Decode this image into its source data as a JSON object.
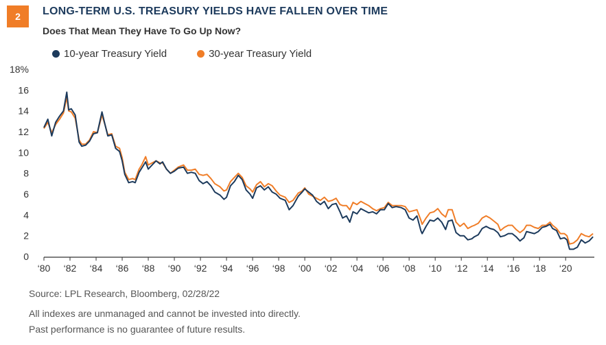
{
  "header": {
    "badge": "2",
    "title": "LONG-TERM U.S. TREASURY YIELDS HAVE FALLEN OVER TIME",
    "subtitle": "Does That Mean They Have To Go Up Now?"
  },
  "footer": {
    "source": "Source: LPL Research, Bloomberg,  02/28/22",
    "note1": "All indexes are unmanaged and cannot be invested into directly.",
    "note2": "Past performance is no guarantee of future results."
  },
  "chart_data": {
    "type": "line",
    "title": "LONG-TERM U.S. TREASURY YIELDS HAVE FALLEN OVER TIME",
    "subtitle": "Does That Mean They Have To Go Up Now?",
    "ylim": [
      0,
      18
    ],
    "xlim": [
      1980,
      2022.2
    ],
    "y_ticks": [
      0,
      2,
      4,
      6,
      8,
      10,
      12,
      14,
      16,
      18
    ],
    "y_tick_labels": [
      "0",
      "2",
      "4",
      "6",
      "8",
      "10",
      "12",
      "14",
      "16",
      "18%"
    ],
    "x_ticks": [
      1980,
      1982,
      1984,
      1986,
      1988,
      1990,
      1992,
      1994,
      1996,
      1998,
      2000,
      2002,
      2004,
      2006,
      2008,
      2010,
      2012,
      2014,
      2016,
      2018,
      2020
    ],
    "x_tick_labels": [
      "‘80",
      "‘82",
      "‘84",
      "‘86",
      "‘88",
      "‘90",
      "‘92",
      "‘94",
      "‘96",
      "‘98",
      "‘00",
      "‘02",
      "‘04",
      "‘06",
      "‘08",
      "‘10",
      "‘12",
      "‘14",
      "‘16",
      "‘18",
      "‘20"
    ],
    "legend_position": "top-left",
    "grid": false,
    "series": [
      {
        "name": "10-year Treasury Yield",
        "color": "#1c3a5c",
        "x": [
          1980.0,
          1980.3,
          1980.6,
          1980.9,
          1981.2,
          1981.5,
          1981.75,
          1981.9,
          1982.1,
          1982.4,
          1982.7,
          1982.9,
          1983.2,
          1983.5,
          1983.8,
          1984.1,
          1984.45,
          1984.7,
          1984.9,
          1985.2,
          1985.5,
          1985.8,
          1986.0,
          1986.2,
          1986.5,
          1986.8,
          1987.0,
          1987.3,
          1987.5,
          1987.8,
          1988.0,
          1988.3,
          1988.6,
          1988.9,
          1989.1,
          1989.4,
          1989.7,
          1990.0,
          1990.3,
          1990.7,
          1991.0,
          1991.3,
          1991.6,
          1991.9,
          1992.2,
          1992.5,
          1992.8,
          1993.1,
          1993.5,
          1993.8,
          1994.0,
          1994.3,
          1994.6,
          1994.9,
          1995.2,
          1995.5,
          1995.8,
          1996.0,
          1996.3,
          1996.6,
          1996.9,
          1997.2,
          1997.5,
          1997.8,
          1998.1,
          1998.5,
          1998.8,
          1999.1,
          1999.5,
          1999.8,
          2000.0,
          2000.3,
          2000.6,
          2000.9,
          2001.2,
          2001.5,
          2001.8,
          2002.1,
          2002.4,
          2002.7,
          2002.9,
          2003.2,
          2003.45,
          2003.7,
          2004.0,
          2004.3,
          2004.6,
          2004.9,
          2005.2,
          2005.5,
          2005.8,
          2006.1,
          2006.4,
          2006.7,
          2007.0,
          2007.4,
          2007.7,
          2008.0,
          2008.3,
          2008.6,
          2008.9,
          2009.0,
          2009.3,
          2009.6,
          2009.9,
          2010.2,
          2010.5,
          2010.8,
          2011.0,
          2011.3,
          2011.6,
          2011.9,
          2012.2,
          2012.5,
          2012.8,
          2013.0,
          2013.3,
          2013.6,
          2013.9,
          2014.2,
          2014.5,
          2014.8,
          2015.0,
          2015.3,
          2015.6,
          2015.9,
          2016.2,
          2016.5,
          2016.8,
          2017.0,
          2017.3,
          2017.6,
          2017.9,
          2018.2,
          2018.5,
          2018.8,
          2019.0,
          2019.3,
          2019.6,
          2019.9,
          2020.1,
          2020.3,
          2020.6,
          2020.9,
          2021.2,
          2021.5,
          2021.8,
          2022.1
        ],
        "y": [
          12.4,
          13.2,
          11.6,
          12.9,
          13.5,
          14.0,
          15.8,
          14.1,
          14.2,
          13.6,
          11.0,
          10.6,
          10.7,
          11.1,
          11.8,
          11.9,
          13.9,
          12.6,
          11.6,
          11.7,
          10.4,
          10.1,
          9.2,
          7.9,
          7.1,
          7.2,
          7.1,
          8.1,
          8.5,
          9.1,
          8.4,
          8.8,
          9.2,
          8.9,
          9.1,
          8.4,
          8.0,
          8.2,
          8.5,
          8.6,
          8.0,
          8.1,
          8.0,
          7.3,
          7.0,
          7.2,
          6.8,
          6.2,
          5.9,
          5.5,
          5.7,
          6.8,
          7.2,
          7.8,
          7.4,
          6.4,
          6.0,
          5.6,
          6.6,
          6.8,
          6.4,
          6.7,
          6.2,
          6.0,
          5.6,
          5.4,
          4.5,
          4.9,
          5.8,
          6.2,
          6.5,
          6.2,
          5.9,
          5.3,
          5.0,
          5.3,
          4.6,
          5.0,
          5.1,
          4.3,
          3.7,
          3.9,
          3.3,
          4.3,
          4.1,
          4.6,
          4.4,
          4.2,
          4.3,
          4.1,
          4.5,
          4.5,
          5.1,
          4.7,
          4.8,
          4.7,
          4.5,
          3.7,
          3.5,
          3.9,
          2.5,
          2.2,
          2.9,
          3.5,
          3.4,
          3.7,
          3.3,
          2.6,
          3.4,
          3.5,
          2.3,
          2.0,
          2.0,
          1.6,
          1.7,
          1.9,
          2.1,
          2.7,
          2.9,
          2.7,
          2.6,
          2.3,
          1.9,
          2.0,
          2.2,
          2.2,
          1.9,
          1.5,
          1.8,
          2.4,
          2.3,
          2.2,
          2.4,
          2.8,
          2.9,
          3.1,
          2.7,
          2.5,
          1.7,
          1.8,
          1.6,
          0.7,
          0.7,
          0.9,
          1.6,
          1.3,
          1.5,
          1.9
        ]
      },
      {
        "name": "30-year Treasury Yield",
        "color": "#f07d27",
        "x": [
          1980.0,
          1980.3,
          1980.6,
          1980.9,
          1981.2,
          1981.5,
          1981.75,
          1981.9,
          1982.1,
          1982.4,
          1982.7,
          1982.9,
          1983.2,
          1983.5,
          1983.8,
          1984.1,
          1984.45,
          1984.7,
          1984.9,
          1985.2,
          1985.5,
          1985.8,
          1986.0,
          1986.2,
          1986.5,
          1986.8,
          1987.0,
          1987.3,
          1987.5,
          1987.8,
          1988.0,
          1988.3,
          1988.6,
          1988.9,
          1989.1,
          1989.4,
          1989.7,
          1990.0,
          1990.3,
          1990.7,
          1991.0,
          1991.3,
          1991.6,
          1991.9,
          1992.2,
          1992.5,
          1992.8,
          1993.1,
          1993.5,
          1993.8,
          1994.0,
          1994.3,
          1994.6,
          1994.9,
          1995.2,
          1995.5,
          1995.8,
          1996.0,
          1996.3,
          1996.6,
          1996.9,
          1997.2,
          1997.5,
          1997.8,
          1998.1,
          1998.5,
          1998.8,
          1999.1,
          1999.5,
          1999.8,
          2000.0,
          2000.3,
          2000.6,
          2000.9,
          2001.2,
          2001.5,
          2001.8,
          2002.1,
          2002.4,
          2002.7,
          2002.9,
          2003.2,
          2003.45,
          2003.7,
          2004.0,
          2004.3,
          2004.6,
          2004.9,
          2005.2,
          2005.5,
          2005.8,
          2006.1,
          2006.4,
          2006.7,
          2007.0,
          2007.4,
          2007.7,
          2008.0,
          2008.3,
          2008.6,
          2008.9,
          2009.0,
          2009.3,
          2009.6,
          2009.9,
          2010.2,
          2010.5,
          2010.8,
          2011.0,
          2011.3,
          2011.6,
          2011.9,
          2012.2,
          2012.5,
          2012.8,
          2013.0,
          2013.3,
          2013.6,
          2013.9,
          2014.2,
          2014.5,
          2014.8,
          2015.0,
          2015.3,
          2015.6,
          2015.9,
          2016.2,
          2016.5,
          2016.8,
          2017.0,
          2017.3,
          2017.6,
          2017.9,
          2018.2,
          2018.5,
          2018.8,
          2019.0,
          2019.3,
          2019.6,
          2019.9,
          2020.1,
          2020.3,
          2020.6,
          2020.9,
          2021.2,
          2021.5,
          2021.8,
          2022.1
        ],
        "y": [
          12.3,
          12.9,
          11.9,
          12.7,
          13.2,
          13.8,
          15.3,
          14.0,
          13.9,
          13.3,
          11.2,
          10.8,
          10.8,
          11.2,
          12.0,
          11.9,
          13.6,
          12.6,
          11.7,
          11.8,
          10.6,
          10.4,
          9.5,
          8.1,
          7.4,
          7.5,
          7.4,
          8.4,
          8.8,
          9.6,
          8.8,
          9.0,
          9.2,
          9.0,
          9.0,
          8.4,
          8.0,
          8.3,
          8.6,
          8.8,
          8.3,
          8.3,
          8.4,
          7.9,
          7.8,
          7.9,
          7.5,
          7.0,
          6.7,
          6.3,
          6.4,
          7.2,
          7.6,
          8.0,
          7.6,
          6.8,
          6.5,
          6.2,
          6.9,
          7.2,
          6.7,
          7.0,
          6.8,
          6.3,
          5.9,
          5.7,
          5.2,
          5.4,
          6.1,
          6.3,
          6.6,
          6.0,
          5.8,
          5.6,
          5.4,
          5.7,
          5.3,
          5.4,
          5.6,
          5.0,
          4.9,
          4.9,
          4.5,
          5.2,
          5.0,
          5.3,
          5.1,
          4.9,
          4.6,
          4.4,
          4.6,
          4.7,
          5.2,
          4.9,
          4.9,
          4.9,
          4.8,
          4.3,
          4.4,
          4.5,
          3.5,
          3.1,
          3.7,
          4.2,
          4.3,
          4.6,
          4.1,
          3.8,
          4.5,
          4.5,
          3.3,
          2.9,
          3.2,
          2.7,
          2.9,
          3.0,
          3.2,
          3.7,
          3.9,
          3.7,
          3.4,
          3.1,
          2.5,
          2.8,
          3.0,
          3.0,
          2.6,
          2.3,
          2.6,
          3.0,
          3.0,
          2.8,
          2.7,
          3.0,
          3.0,
          3.3,
          3.0,
          2.7,
          2.2,
          2.2,
          2.0,
          1.2,
          1.3,
          1.6,
          2.2,
          2.0,
          1.9,
          2.2
        ]
      }
    ]
  }
}
